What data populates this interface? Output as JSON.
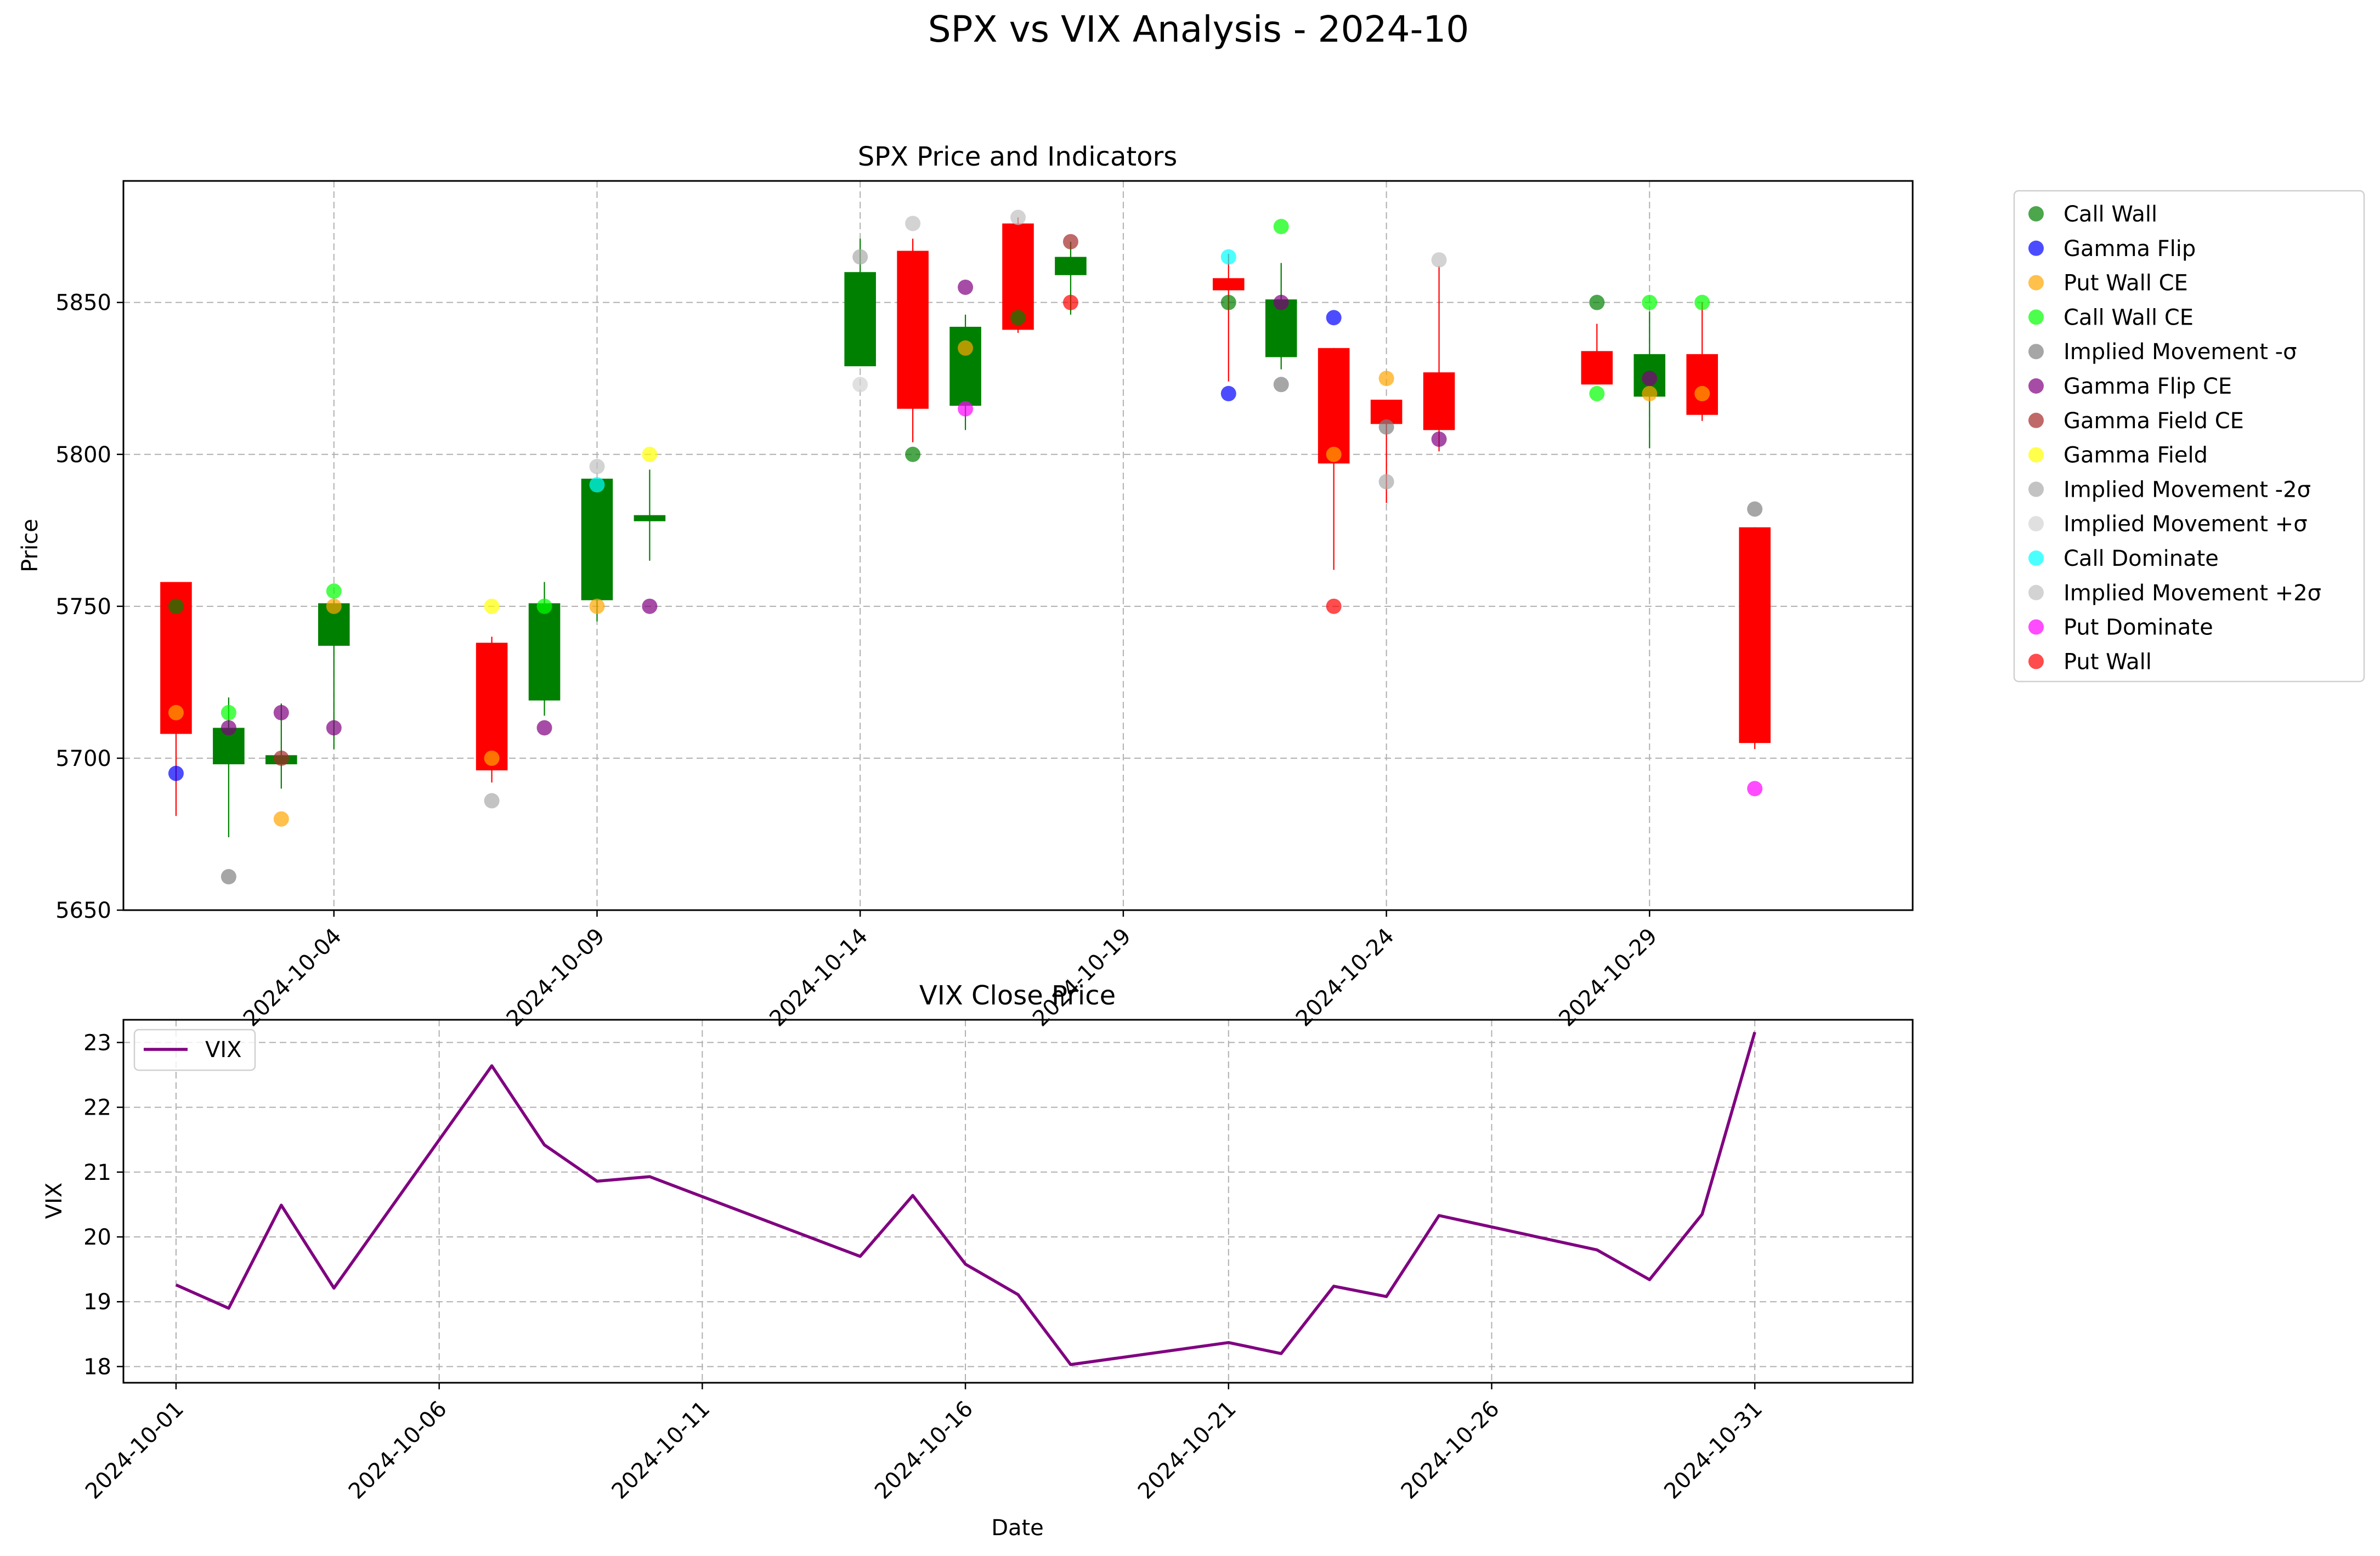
{
  "figure_title": "SPX vs VIX Analysis - 2024-10",
  "colors": {
    "up": "#008000",
    "down": "#ff0000",
    "vix_line": "#800080",
    "grid": "#b0b0b0"
  },
  "chart_data": [
    {
      "type": "candlestick",
      "title": "SPX Price and Indicators",
      "xlabel": "",
      "ylabel": "Price",
      "xlim": [
        "2024-09-30",
        "2024-11-03"
      ],
      "ylim": [
        5650,
        5890
      ],
      "yticks": [
        5650,
        5700,
        5750,
        5800,
        5850
      ],
      "xticks": [
        "2024-10-04",
        "2024-10-09",
        "2024-10-14",
        "2024-10-19",
        "2024-10-24",
        "2024-10-29"
      ],
      "grid": true,
      "legend": "outside-right",
      "candles": [
        {
          "date": "2024-10-01",
          "open": 5758,
          "high": 5758,
          "low": 5681,
          "close": 5708
        },
        {
          "date": "2024-10-02",
          "open": 5698,
          "high": 5720,
          "low": 5674,
          "close": 5710
        },
        {
          "date": "2024-10-03",
          "open": 5698,
          "high": 5718,
          "low": 5690,
          "close": 5701
        },
        {
          "date": "2024-10-04",
          "open": 5737,
          "high": 5752,
          "low": 5703,
          "close": 5751
        },
        {
          "date": "2024-10-07",
          "open": 5738,
          "high": 5740,
          "low": 5692,
          "close": 5696
        },
        {
          "date": "2024-10-08",
          "open": 5719,
          "high": 5758,
          "low": 5714,
          "close": 5751
        },
        {
          "date": "2024-10-09",
          "open": 5752,
          "high": 5792,
          "low": 5745,
          "close": 5792
        },
        {
          "date": "2024-10-10",
          "open": 5778,
          "high": 5795,
          "low": 5765,
          "close": 5780
        },
        {
          "date": "2024-10-14",
          "open": 5829,
          "high": 5871,
          "low": 5829,
          "close": 5860
        },
        {
          "date": "2024-10-15",
          "open": 5867,
          "high": 5871,
          "low": 5804,
          "close": 5815
        },
        {
          "date": "2024-10-16",
          "open": 5816,
          "high": 5846,
          "low": 5808,
          "close": 5842
        },
        {
          "date": "2024-10-17",
          "open": 5876,
          "high": 5878,
          "low": 5840,
          "close": 5841
        },
        {
          "date": "2024-10-18",
          "open": 5859,
          "high": 5870,
          "low": 5846,
          "close": 5865
        },
        {
          "date": "2024-10-21",
          "open": 5858,
          "high": 5866,
          "low": 5824,
          "close": 5854
        },
        {
          "date": "2024-10-22",
          "open": 5832,
          "high": 5863,
          "low": 5828,
          "close": 5851
        },
        {
          "date": "2024-10-23",
          "open": 5835,
          "high": 5835,
          "low": 5762,
          "close": 5797
        },
        {
          "date": "2024-10-24",
          "open": 5818,
          "high": 5818,
          "low": 5784,
          "close": 5810
        },
        {
          "date": "2024-10-25",
          "open": 5827,
          "high": 5862,
          "low": 5801,
          "close": 5808
        },
        {
          "date": "2024-10-28",
          "open": 5834,
          "high": 5843,
          "low": 5823,
          "close": 5823
        },
        {
          "date": "2024-10-29",
          "open": 5819,
          "high": 5847,
          "low": 5802,
          "close": 5833
        },
        {
          "date": "2024-10-30",
          "open": 5833,
          "high": 5850,
          "low": 5811,
          "close": 5813
        },
        {
          "date": "2024-10-31",
          "open": 5776,
          "high": 5776,
          "low": 5703,
          "close": 5705
        }
      ],
      "series": [
        {
          "name": "Call Wall",
          "color": "#008000",
          "points": [
            [
              "2024-10-01",
              5750
            ],
            [
              "2024-10-15",
              5800
            ],
            [
              "2024-10-17",
              5845
            ],
            [
              "2024-10-21",
              5850
            ],
            [
              "2024-10-28",
              5850
            ]
          ]
        },
        {
          "name": "Gamma Flip",
          "color": "#0000ff",
          "points": [
            [
              "2024-10-01",
              5695
            ],
            [
              "2024-10-21",
              5820
            ],
            [
              "2024-10-23",
              5845
            ]
          ]
        },
        {
          "name": "Put Wall CE",
          "color": "#ffa500",
          "points": [
            [
              "2024-10-01",
              5715
            ],
            [
              "2024-10-03",
              5680
            ],
            [
              "2024-10-04",
              5750
            ],
            [
              "2024-10-07",
              5700
            ],
            [
              "2024-10-09",
              5750
            ],
            [
              "2024-10-16",
              5835
            ],
            [
              "2024-10-23",
              5800
            ],
            [
              "2024-10-24",
              5825
            ],
            [
              "2024-10-29",
              5820
            ],
            [
              "2024-10-30",
              5820
            ]
          ]
        },
        {
          "name": "Call Wall CE",
          "color": "#00ff00",
          "points": [
            [
              "2024-10-02",
              5715
            ],
            [
              "2024-10-04",
              5755
            ],
            [
              "2024-10-08",
              5750
            ],
            [
              "2024-10-22",
              5875
            ],
            [
              "2024-10-28",
              5820
            ],
            [
              "2024-10-29",
              5850
            ],
            [
              "2024-10-30",
              5850
            ]
          ]
        },
        {
          "name": "Implied Movement -σ",
          "color": "#808080",
          "points": [
            [
              "2024-10-02",
              5661
            ],
            [
              "2024-10-22",
              5823
            ],
            [
              "2024-10-24",
              5809
            ],
            [
              "2024-10-31",
              5782
            ]
          ]
        },
        {
          "name": "Gamma Flip CE",
          "color": "#800080",
          "points": [
            [
              "2024-10-02",
              5710
            ],
            [
              "2024-10-03",
              5715
            ],
            [
              "2024-10-04",
              5710
            ],
            [
              "2024-10-08",
              5710
            ],
            [
              "2024-10-10",
              5750
            ],
            [
              "2024-10-16",
              5855
            ],
            [
              "2024-10-22",
              5850
            ],
            [
              "2024-10-25",
              5805
            ],
            [
              "2024-10-29",
              5825
            ]
          ]
        },
        {
          "name": "Gamma Field CE",
          "color": "#a52a2a",
          "points": [
            [
              "2024-10-03",
              5700
            ],
            [
              "2024-10-18",
              5870
            ]
          ]
        },
        {
          "name": "Gamma Field",
          "color": "#ffff00",
          "points": [
            [
              "2024-10-07",
              5750
            ],
            [
              "2024-10-10",
              5800
            ]
          ]
        },
        {
          "name": "Implied Movement -2σ",
          "color": "#a9a9a9",
          "points": [
            [
              "2024-10-07",
              5686
            ],
            [
              "2024-10-14",
              5865
            ],
            [
              "2024-10-24",
              5791
            ]
          ]
        },
        {
          "name": "Implied Movement +σ",
          "color": "#d3d3d3",
          "points": [
            [
              "2024-10-14",
              5823
            ]
          ]
        },
        {
          "name": "Call Dominate",
          "color": "#00ffff",
          "points": [
            [
              "2024-10-09",
              5790
            ],
            [
              "2024-10-21",
              5865
            ]
          ]
        },
        {
          "name": "Implied Movement +2σ",
          "color": "#c0c0c0",
          "points": [
            [
              "2024-10-09",
              5796
            ],
            [
              "2024-10-15",
              5876
            ],
            [
              "2024-10-17",
              5878
            ],
            [
              "2024-10-25",
              5864
            ]
          ]
        },
        {
          "name": "Put Dominate",
          "color": "#ff00ff",
          "points": [
            [
              "2024-10-16",
              5815
            ],
            [
              "2024-10-31",
              5690
            ]
          ]
        },
        {
          "name": "Put Wall",
          "color": "#ff0000",
          "points": [
            [
              "2024-10-18",
              5850
            ],
            [
              "2024-10-23",
              5750
            ]
          ]
        }
      ]
    },
    {
      "type": "line",
      "title": "VIX Close Price",
      "xlabel": "Date",
      "ylabel": "VIX",
      "xlim": [
        "2024-09-30",
        "2024-11-03"
      ],
      "ylim": [
        17.75,
        23.35
      ],
      "yticks": [
        18,
        19,
        20,
        21,
        22,
        23
      ],
      "xticks": [
        "2024-10-01",
        "2024-10-06",
        "2024-10-11",
        "2024-10-16",
        "2024-10-21",
        "2024-10-26",
        "2024-10-31"
      ],
      "grid": true,
      "legend": "top-left",
      "series": [
        {
          "name": "VIX",
          "color": "#800080",
          "x": [
            "2024-10-01",
            "2024-10-02",
            "2024-10-03",
            "2024-10-04",
            "2024-10-07",
            "2024-10-08",
            "2024-10-09",
            "2024-10-10",
            "2024-10-14",
            "2024-10-15",
            "2024-10-16",
            "2024-10-17",
            "2024-10-18",
            "2024-10-21",
            "2024-10-22",
            "2024-10-23",
            "2024-10-24",
            "2024-10-25",
            "2024-10-28",
            "2024-10-29",
            "2024-10-30",
            "2024-10-31"
          ],
          "values": [
            19.26,
            18.9,
            20.49,
            19.21,
            22.64,
            21.42,
            20.86,
            20.93,
            19.7,
            20.64,
            19.58,
            19.11,
            18.03,
            18.37,
            18.2,
            19.24,
            19.08,
            20.33,
            19.8,
            19.34,
            20.35,
            23.16
          ]
        }
      ]
    }
  ]
}
